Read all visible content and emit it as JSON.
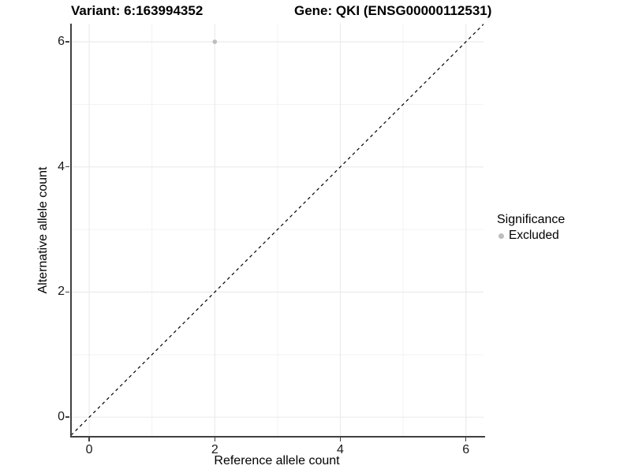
{
  "chart_data": {
    "type": "scatter",
    "title_left": "Variant: 6:163994352",
    "title_right": "Gene: QKI (ENSG00000112531)",
    "xlabel": "Reference allele count",
    "ylabel": "Alternative allele count",
    "xlim": [
      -0.29,
      6.28
    ],
    "ylim": [
      -0.3,
      6.29
    ],
    "x_ticks": [
      0,
      2,
      4,
      6
    ],
    "y_ticks": [
      0,
      2,
      4,
      6
    ],
    "grid": "on",
    "grid_major": [
      0,
      2,
      4,
      6
    ],
    "grid_minor": [
      1,
      3,
      5
    ],
    "series": [
      {
        "name": "Excluded",
        "color": "#bdbdbd",
        "points": [
          {
            "x": 2,
            "y": 6
          }
        ]
      }
    ],
    "reference_line": {
      "kind": "identity y=x",
      "slope": 1,
      "intercept": 0,
      "style": "dashed",
      "color": "#000000"
    },
    "legend": {
      "title": "Significance",
      "position": "right",
      "entries": [
        {
          "label": "Excluded",
          "color": "#bdbdbd"
        }
      ]
    },
    "colors": {
      "axis_line": "#404040",
      "grid_major": "#ebebeb",
      "grid_minor": "#f3f3f3",
      "background": "#ffffff"
    }
  }
}
